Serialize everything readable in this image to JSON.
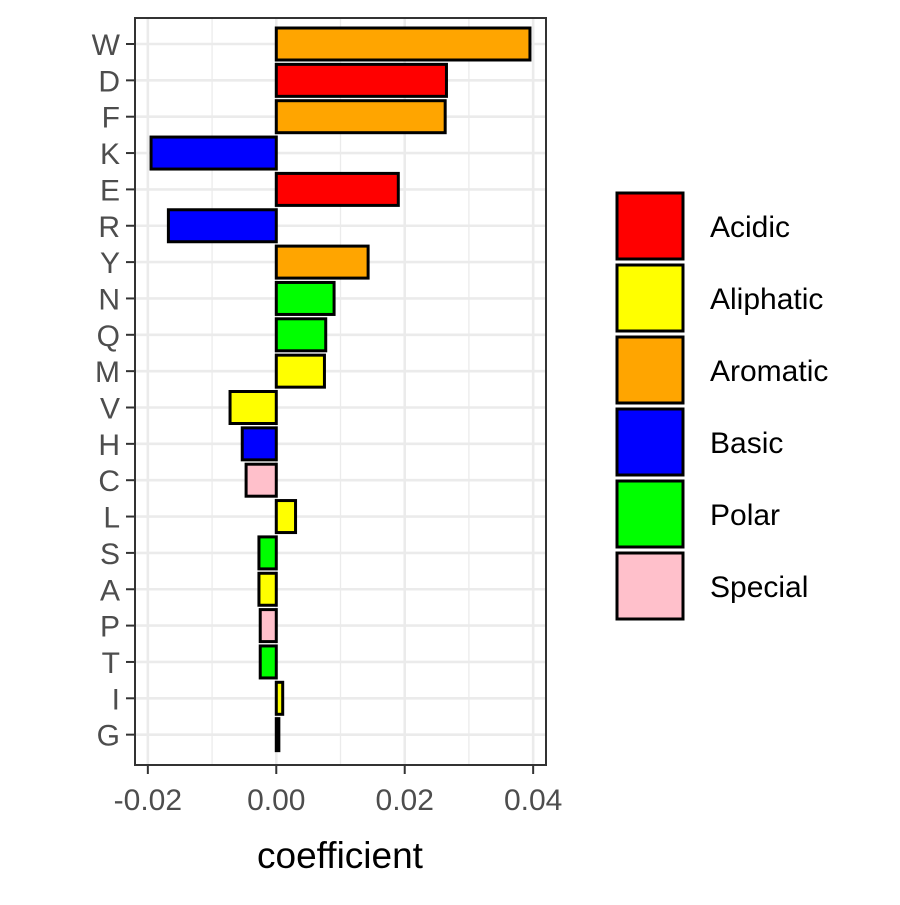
{
  "chart_data": {
    "type": "bar",
    "orientation": "horizontal",
    "categories": [
      "W",
      "D",
      "F",
      "K",
      "E",
      "R",
      "Y",
      "N",
      "Q",
      "M",
      "V",
      "H",
      "C",
      "L",
      "S",
      "A",
      "P",
      "T",
      "I",
      "G"
    ],
    "values": [
      0.0395,
      0.0265,
      0.0263,
      -0.0195,
      0.019,
      -0.0168,
      0.0143,
      0.009,
      0.0077,
      0.0075,
      -0.0072,
      -0.0053,
      -0.0047,
      0.003,
      -0.0027,
      -0.0027,
      -0.0025,
      -0.0025,
      0.001,
      0.0004
    ],
    "groups": [
      "Aromatic",
      "Acidic",
      "Aromatic",
      "Basic",
      "Acidic",
      "Basic",
      "Aromatic",
      "Polar",
      "Polar",
      "Aliphatic",
      "Aliphatic",
      "Basic",
      "Special",
      "Aliphatic",
      "Polar",
      "Aliphatic",
      "Special",
      "Polar",
      "Aliphatic",
      "Special"
    ],
    "xlabel": "coefficient",
    "ylabel": "",
    "xlim": [
      -0.022,
      0.042
    ],
    "xticks": [
      "-0.02",
      "0.00",
      "0.02",
      "0.04"
    ],
    "xtick_values": [
      -0.02,
      0,
      0.02,
      0.04
    ],
    "grid": true,
    "legend": {
      "position": "right",
      "entries": [
        {
          "name": "Acidic",
          "color": "#ff0000"
        },
        {
          "name": "Aliphatic",
          "color": "#ffff00"
        },
        {
          "name": "Aromatic",
          "color": "#ffa500"
        },
        {
          "name": "Basic",
          "color": "#0000ff"
        },
        {
          "name": "Polar",
          "color": "#00ff00"
        },
        {
          "name": "Special",
          "color": "#ffc0cb"
        }
      ]
    }
  }
}
